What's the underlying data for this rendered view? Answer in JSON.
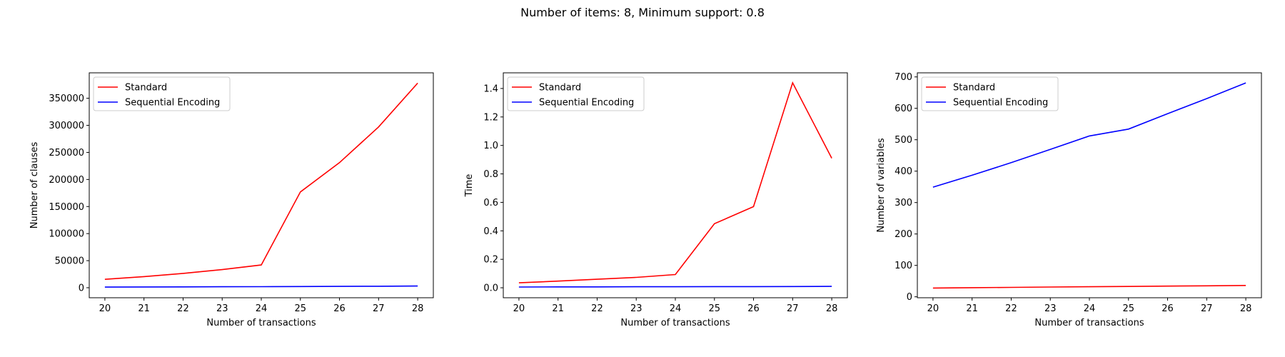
{
  "suptitle": "Number of items: 8, Minimum support: 0.8",
  "colors": {
    "standard": "#ff0000",
    "sequential": "#0000ff"
  },
  "chart_data": [
    {
      "type": "line",
      "xlabel": "Number of transactions",
      "ylabel": "Number of clauses",
      "x": [
        20,
        21,
        22,
        23,
        24,
        25,
        26,
        27,
        28
      ],
      "xticks": [
        20,
        21,
        22,
        23,
        24,
        25,
        26,
        27,
        28
      ],
      "xlim": [
        19.6,
        28.4
      ],
      "ylim": [
        -18500,
        397000
      ],
      "yticks": [
        0,
        50000,
        100000,
        150000,
        200000,
        250000,
        300000,
        350000
      ],
      "legend": "top-left",
      "series": [
        {
          "name": "Standard",
          "color": "#ff0000",
          "values": [
            15500,
            20500,
            26500,
            33500,
            42000,
            177000,
            231000,
            297000,
            378000
          ]
        },
        {
          "name": "Sequential Encoding",
          "color": "#0000ff",
          "values": [
            1200,
            1400,
            1600,
            1800,
            2000,
            2200,
            2500,
            2800,
            3100
          ]
        }
      ]
    },
    {
      "type": "line",
      "xlabel": "Number of transactions",
      "ylabel": "Time",
      "x": [
        20,
        21,
        22,
        23,
        24,
        25,
        26,
        27,
        28
      ],
      "xticks": [
        20,
        21,
        22,
        23,
        24,
        25,
        26,
        27,
        28
      ],
      "xlim": [
        19.6,
        28.4
      ],
      "ylim": [
        -0.07,
        1.51
      ],
      "yticks": [
        0.0,
        0.2,
        0.4,
        0.6,
        0.8,
        1.0,
        1.2,
        1.4
      ],
      "ytick_labels": [
        "0.0",
        "0.2",
        "0.4",
        "0.6",
        "0.8",
        "1.0",
        "1.2",
        "1.4"
      ],
      "legend": "top-left",
      "series": [
        {
          "name": "Standard",
          "color": "#ff0000",
          "values": [
            0.035,
            0.047,
            0.06,
            0.073,
            0.093,
            0.45,
            0.57,
            1.44,
            0.91
          ]
        },
        {
          "name": "Sequential Encoding",
          "color": "#0000ff",
          "values": [
            0.005,
            0.006,
            0.006,
            0.007,
            0.007,
            0.008,
            0.008,
            0.009,
            0.01
          ]
        }
      ]
    },
    {
      "type": "line",
      "xlabel": "Number of transactions",
      "ylabel": "Number of variables",
      "x": [
        20,
        21,
        22,
        23,
        24,
        25,
        26,
        27,
        28
      ],
      "xticks": [
        20,
        21,
        22,
        23,
        24,
        25,
        26,
        27,
        28
      ],
      "xlim": [
        19.6,
        28.4
      ],
      "ylim": [
        -3,
        713
      ],
      "yticks": [
        0,
        100,
        200,
        300,
        400,
        500,
        600,
        700
      ],
      "legend": "top-left",
      "series": [
        {
          "name": "Standard",
          "color": "#ff0000",
          "values": [
            28,
            29,
            30,
            31,
            32,
            33,
            34,
            35,
            36
          ]
        },
        {
          "name": "Sequential Encoding",
          "color": "#0000ff",
          "values": [
            349,
            387,
            427,
            469,
            512,
            534,
            583,
            631,
            681
          ]
        }
      ]
    }
  ]
}
